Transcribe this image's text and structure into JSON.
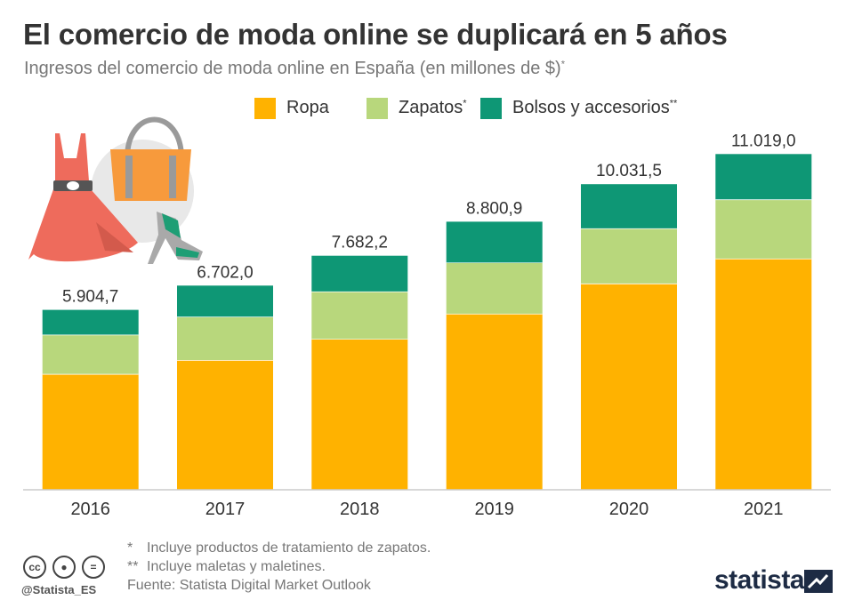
{
  "header": {
    "title": "El comercio de moda online se duplicará en 5 años",
    "subtitle": "Ingresos del comercio de moda online en España (en millones de $)",
    "subtitle_mark": "*"
  },
  "legend": [
    {
      "label": "Ropa",
      "mark": "",
      "color": "#ffb200"
    },
    {
      "label": "Zapatos",
      "mark": "*",
      "color": "#b8d77c"
    },
    {
      "label": "Bolsos y accesorios",
      "mark": "**",
      "color": "#0e9775"
    }
  ],
  "chart_data": {
    "type": "bar",
    "stacked": true,
    "categories": [
      "2016",
      "2017",
      "2018",
      "2019",
      "2020",
      "2021"
    ],
    "series": [
      {
        "name": "Ropa",
        "color": "#ffb200",
        "values": [
          3800,
          4260,
          4950,
          5780,
          6770,
          7590
        ]
      },
      {
        "name": "Zapatos",
        "color": "#b8d77c",
        "values": [
          1290,
          1420,
          1560,
          1680,
          1810,
          1940
        ]
      },
      {
        "name": "Bolsos y accesorios",
        "color": "#0e9775",
        "values": [
          814.7,
          1022.0,
          1172.2,
          1340.9,
          1451.5,
          1489.0
        ]
      }
    ],
    "totals": [
      "5.904,7",
      "6.702,0",
      "7.682,2",
      "8.800,9",
      "10.031,5",
      "11.019,0"
    ],
    "ylim": [
      0,
      11700
    ],
    "grid": false
  },
  "notes": [
    {
      "mark": "*",
      "text": "Incluye productos de tratamiento de zapatos."
    },
    {
      "mark": "**",
      "text": "Incluye maletas y maletines."
    }
  ],
  "source": "Fuente: Statista Digital Market Outlook",
  "footer": {
    "handle": "@Statista_ES",
    "brand": "statista",
    "license_icons": [
      "cc-icon",
      "by-icon",
      "nd-icon"
    ]
  }
}
